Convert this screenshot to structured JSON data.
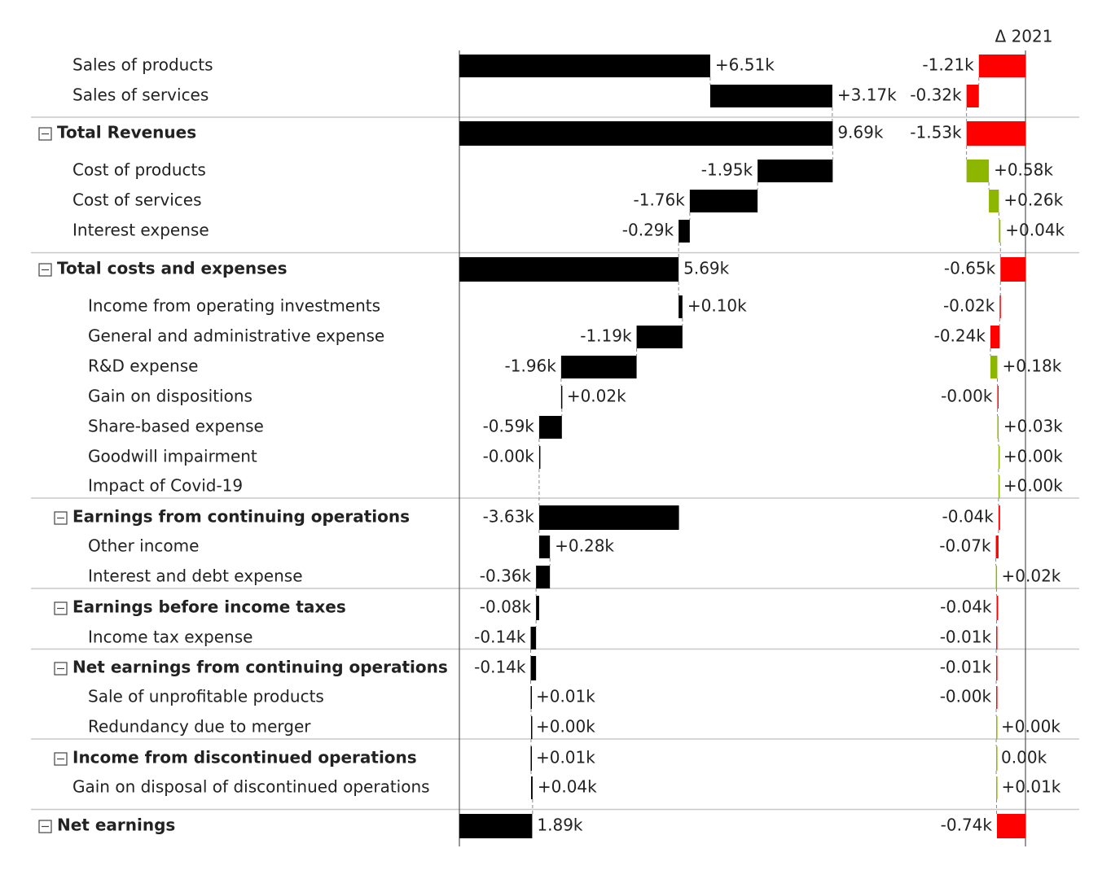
{
  "chart_data": {
    "type": "waterfall-table",
    "categories": [
      "Sales of products",
      "Sales of services",
      "Total Revenues",
      "Cost of products",
      "Cost of services",
      "Interest expense",
      "Total costs and expenses",
      "Income from operating investments",
      "General and administrative expense",
      "R&D expense",
      "Gain on dispositions",
      "Share-based expense",
      "Goodwill impairment",
      "Impact of Covid-19",
      "Earnings from continuing operations",
      "Other income",
      "Interest and debt expense",
      "Earnings before income taxes",
      "Income tax expense",
      "Net earnings from continuing operations",
      "Sale of unprofitable products",
      "Redundancy due to merger",
      "Income from discontinued operations",
      "Gain on disposal of discontinued operations",
      "Net earnings"
    ],
    "row_kinds": [
      "item",
      "item",
      "total",
      "item",
      "item",
      "item",
      "total",
      "item",
      "item",
      "item",
      "item",
      "item",
      "item",
      "item",
      "subtotal",
      "item",
      "item",
      "subtotal",
      "item",
      "subtotal",
      "item",
      "item",
      "subtotal",
      "item",
      "total"
    ],
    "row_levels": [
      1,
      1,
      0,
      1,
      1,
      1,
      0,
      2,
      2,
      2,
      2,
      2,
      2,
      2,
      1,
      2,
      2,
      1,
      2,
      1,
      2,
      2,
      1,
      1,
      0
    ],
    "series": [
      {
        "color": "#000000",
        "values": [
          6.51,
          3.17,
          9.69,
          -1.95,
          -1.76,
          -0.29,
          5.69,
          0.1,
          -1.19,
          -1.96,
          0.02,
          -0.59,
          -0.0,
          null,
          -3.63,
          0.28,
          -0.36,
          -0.08,
          -0.14,
          -0.14,
          0.01,
          0.0,
          0.01,
          0.04,
          1.89
        ],
        "value_labels": [
          "+6.51k",
          "+3.17k",
          "9.69k",
          "-1.95k",
          "-1.76k",
          "-0.29k",
          "5.69k",
          "+0.10k",
          "-1.19k",
          "-1.96k",
          "+0.02k",
          "-0.59k",
          "-0.00k",
          null,
          "-3.63k",
          "+0.28k",
          "-0.36k",
          "-0.08k",
          "-0.14k",
          "-0.14k",
          "+0.01k",
          "+0.00k",
          "+0.01k",
          "+0.04k",
          "1.89k"
        ]
      },
      {
        "name": "Δ 2021",
        "positive_color": "#8db600",
        "negative_color": "#ff0000",
        "values": [
          -1.21,
          -0.32,
          -1.53,
          0.58,
          0.26,
          0.04,
          -0.65,
          -0.02,
          -0.24,
          0.18,
          -0.0,
          0.03,
          0.0,
          0.0,
          -0.04,
          -0.07,
          0.02,
          -0.04,
          -0.01,
          -0.01,
          -0.0,
          0.0,
          0.0,
          0.01,
          -0.74
        ],
        "value_labels": [
          "-1.21k",
          "-0.32k",
          "-1.53k",
          "+0.58k",
          "+0.26k",
          "+0.04k",
          "-0.65k",
          "-0.02k",
          "-0.24k",
          "+0.18k",
          "-0.00k",
          "+0.03k",
          "+0.00k",
          "+0.00k",
          "-0.04k",
          "-0.07k",
          "+0.02k",
          "-0.04k",
          "-0.01k",
          "-0.01k",
          "-0.00k",
          "+0.00k",
          "0.00k",
          "+0.01k",
          "-0.74k"
        ]
      }
    ]
  }
}
